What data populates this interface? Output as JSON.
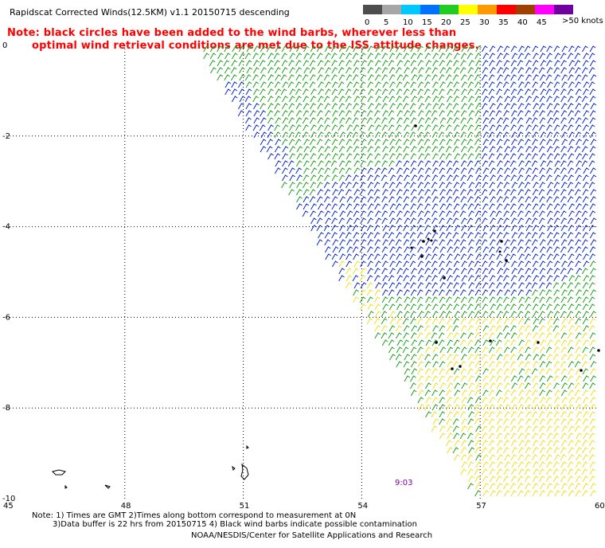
{
  "header": {
    "title": "Rapidscat Corrected Winds(12.5KM) v1.1 20150715 descending",
    "note_line1": "Note: black circles have been added to the wind barbs, wherever less than",
    "note_line2": "optimal wind retrieval conditions are met due to the ISS attitude changes."
  },
  "legend": {
    "units": ">50 knots",
    "bins": [
      {
        "label": "0",
        "color": "#4d4d4d"
      },
      {
        "label": "5",
        "color": "#a6a6a6"
      },
      {
        "label": "10",
        "color": "#00c8ff"
      },
      {
        "label": "15",
        "color": "#0070ff"
      },
      {
        "label": "20",
        "color": "#22cc22"
      },
      {
        "label": "25",
        "color": "#ffff00"
      },
      {
        "label": "30",
        "color": "#ff9900"
      },
      {
        "label": "35",
        "color": "#ff0000"
      },
      {
        "label": "40",
        "color": "#a04000"
      },
      {
        "label": "45",
        "color": "#ff00ff"
      },
      {
        "label": "",
        "color": "#7000a0"
      }
    ]
  },
  "map": {
    "lon_ticks": [
      "45",
      "48",
      "51",
      "54",
      "57",
      "60"
    ],
    "lat_ticks": [
      "0",
      "-2",
      "-4",
      "-6",
      "-8",
      "-10"
    ],
    "time_label": "9:03",
    "wind_colors": {
      "slow": "#0a28c8",
      "medium": "#1ea01e",
      "strong": "#f0e020",
      "flag": "#000000"
    }
  },
  "footer": {
    "line1": "Note: 1) Times are GMT 2)Times along bottom correspond to measurement at 0N",
    "line2": "3)Data buffer is 22 hrs from 20150715 4) Black wind barbs indicate possible contamination",
    "line3": "NOAA/NESDIS/Center for Satellite Applications and Research"
  }
}
